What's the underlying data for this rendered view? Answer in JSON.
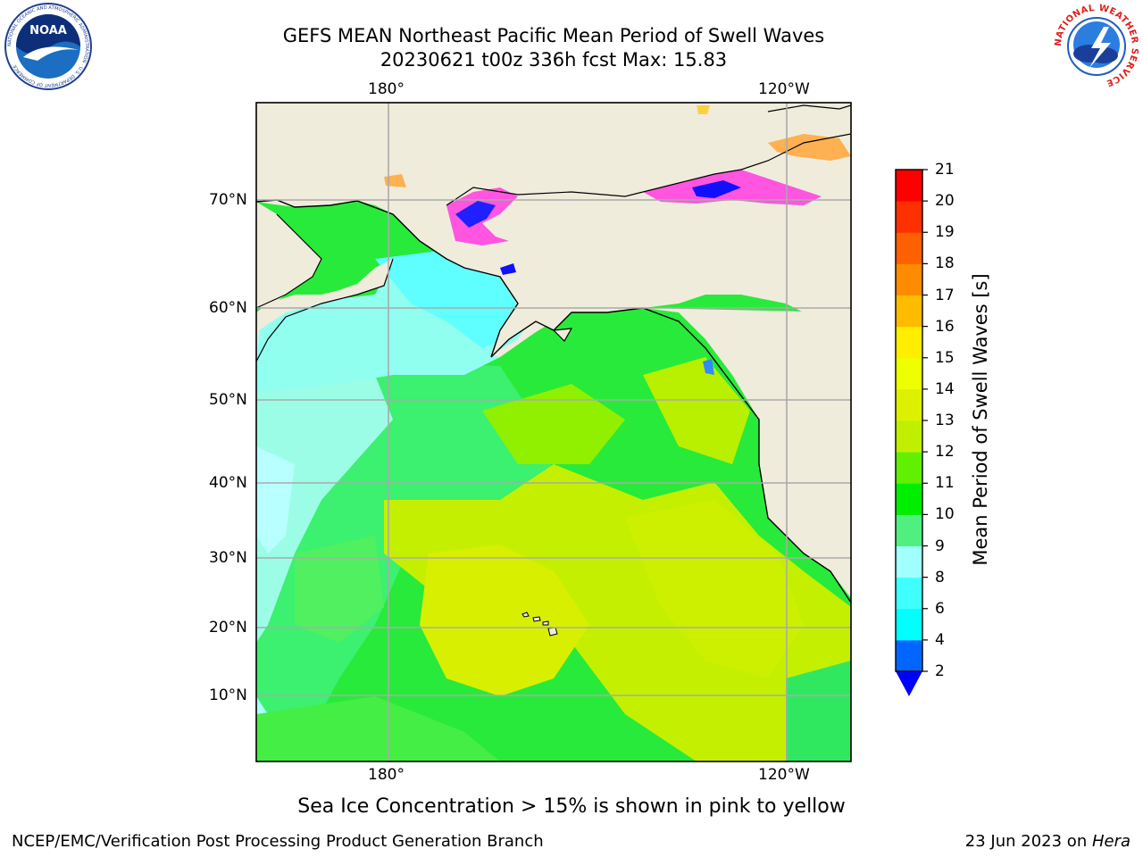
{
  "title": {
    "line1": "GEFS MEAN Northeast Pacific Mean Period of Swell Waves",
    "line2": "20230621 t00z 336h fcst   Max: 15.83"
  },
  "logos": {
    "left": {
      "name": "noaa-logo",
      "text": "NOAA",
      "ring_text": "NATIONAL OCEANIC AND ATMOSPHERIC ADMINISTRATION · U.S. DEPARTMENT OF COMMERCE"
    },
    "right": {
      "name": "nws-logo",
      "ring_text": "NATIONAL WEATHER SERVICE"
    }
  },
  "map": {
    "lon_labels": [
      "180°",
      "120°W"
    ],
    "lat_labels": [
      "70°N",
      "60°N",
      "50°N",
      "40°N",
      "30°N",
      "20°N",
      "10°N"
    ],
    "grid": true,
    "colors": {
      "land": "#efecdc",
      "grid": "#aaaaaa",
      "coast": "#000000"
    }
  },
  "colorbar": {
    "label": "Mean Period of Swell Waves [s]",
    "ticks": [
      "21",
      "20",
      "19",
      "18",
      "17",
      "16",
      "15",
      "14",
      "13",
      "12",
      "11",
      "10",
      "9",
      "8",
      "6",
      "4",
      "2"
    ],
    "levels": [
      2,
      4,
      6,
      8,
      9,
      10,
      11,
      12,
      13,
      14,
      15,
      16,
      17,
      18,
      19,
      20,
      21
    ],
    "colors": [
      "#0066ff",
      "#00ffff",
      "#40ffff",
      "#a0ffff",
      "#50f080",
      "#00ee00",
      "#60f000",
      "#c0f000",
      "#ddf000",
      "#eeff00",
      "#ffee00",
      "#ffbb00",
      "#ff8c00",
      "#ff6000",
      "#ff3000",
      "#ff0000"
    ],
    "under_color": "#0000ff"
  },
  "note": "Sea Ice Concentration > 15% is shown in pink to yellow",
  "footer": {
    "left": "NCEP/EMC/Verification Post Processing Product Generation Branch",
    "date": "23 Jun 2023 on ",
    "machine": "Hera"
  }
}
